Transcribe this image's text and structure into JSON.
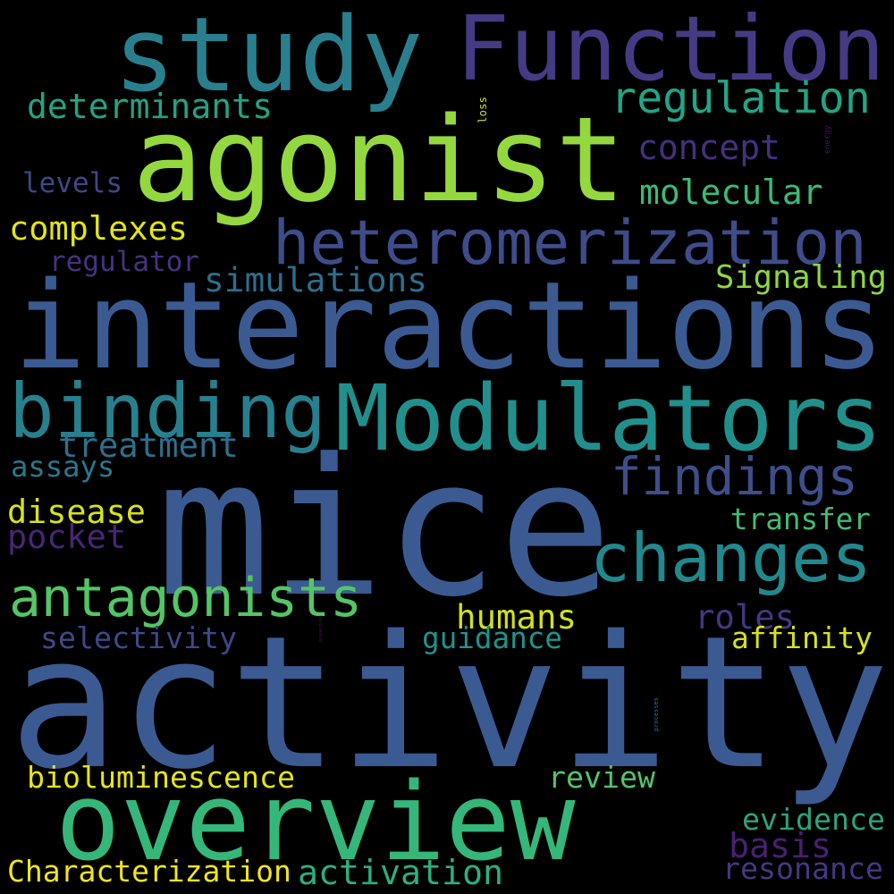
{
  "words": [
    {
      "text": "activity",
      "color": "#3b5a92"
    },
    {
      "text": "mice",
      "color": "#3b5a92"
    },
    {
      "text": "interactions",
      "color": "#3b5a92"
    },
    {
      "text": "agonist",
      "color": "#94d840"
    },
    {
      "text": "overview",
      "color": "#35b779"
    },
    {
      "text": "study",
      "color": "#2a7f8e"
    },
    {
      "text": "Function",
      "color": "#443b84"
    },
    {
      "text": "Modulators",
      "color": "#21908d"
    },
    {
      "text": "binding",
      "color": "#27808e"
    },
    {
      "text": "heteromerization",
      "color": "#3e4c8a"
    },
    {
      "text": "changes",
      "color": "#22888e"
    },
    {
      "text": "antagonists",
      "color": "#54c566"
    },
    {
      "text": "findings",
      "color": "#3d4e8a"
    },
    {
      "text": "regulation",
      "color": "#21a585"
    },
    {
      "text": "complexes",
      "color": "#e3e418"
    },
    {
      "text": "simulations",
      "color": "#2e6e8e"
    },
    {
      "text": "determinants",
      "color": "#23a383"
    },
    {
      "text": "concept",
      "color": "#46307e"
    },
    {
      "text": "molecular",
      "color": "#3bbb75"
    },
    {
      "text": "levels",
      "color": "#404688"
    },
    {
      "text": "regulator",
      "color": "#46337f"
    },
    {
      "text": "Signaling",
      "color": "#8ed645"
    },
    {
      "text": "loss",
      "color": "#c7e020"
    },
    {
      "text": "energy",
      "color": "#471365"
    },
    {
      "text": "treatment",
      "color": "#2e6f8e"
    },
    {
      "text": "assays",
      "color": "#29798e"
    },
    {
      "text": "disease",
      "color": "#d8e219"
    },
    {
      "text": "pocket",
      "color": "#482677"
    },
    {
      "text": "transfer",
      "color": "#40bd72"
    },
    {
      "text": "humans",
      "color": "#d0e11c"
    },
    {
      "text": "roles",
      "color": "#453781"
    },
    {
      "text": "selectivity",
      "color": "#3f4889"
    },
    {
      "text": "guidance",
      "color": "#20938c"
    },
    {
      "text": "affinity",
      "color": "#d8e219"
    },
    {
      "text": "properties",
      "color": "#471063"
    },
    {
      "text": "processes",
      "color": "#2c728e"
    },
    {
      "text": "bioluminescence",
      "color": "#e5e419"
    },
    {
      "text": "review",
      "color": "#52c569"
    },
    {
      "text": "evidence",
      "color": "#2da37f"
    },
    {
      "text": "basis",
      "color": "#482071"
    },
    {
      "text": "Characterization",
      "color": "#f1e51d"
    },
    {
      "text": "activation",
      "color": "#2ab07f"
    },
    {
      "text": "resonance",
      "color": "#453882"
    }
  ]
}
